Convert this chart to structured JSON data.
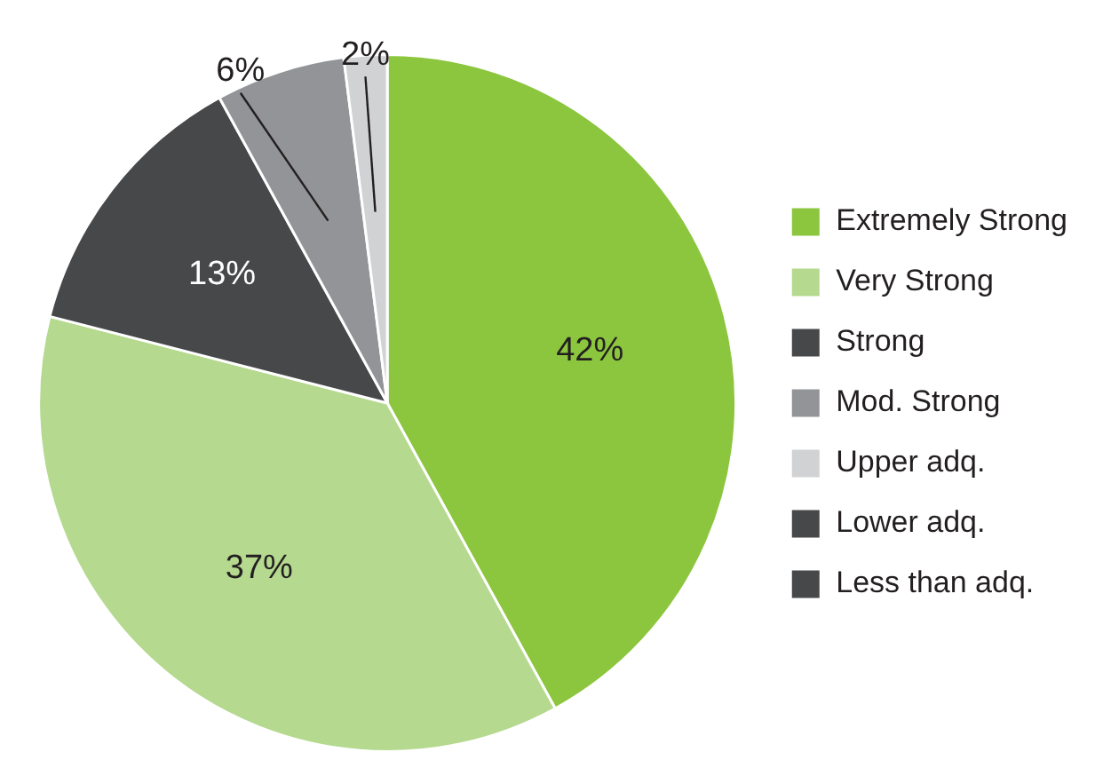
{
  "chart_data": {
    "type": "pie",
    "categories": [
      "Extremely Strong",
      "Very Strong",
      "Strong",
      "Mod. Strong",
      "Upper adq.",
      "Lower adq.",
      "Less than adq."
    ],
    "values": [
      42,
      37,
      13,
      6,
      2,
      0,
      0
    ],
    "colors": [
      "#8cc63f",
      "#b5d98f",
      "#47484a",
      "#929497",
      "#d1d2d3",
      "#47484a",
      "#47484a"
    ],
    "value_labels": [
      "42%",
      "37%",
      "13%",
      "6%",
      "2%",
      null,
      null
    ],
    "legend": "right"
  }
}
